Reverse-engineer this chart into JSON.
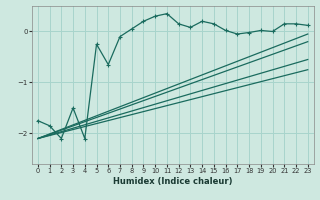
{
  "xlabel": "Humidex (Indice chaleur)",
  "ylabel": "",
  "xlim": [
    -0.5,
    23.5
  ],
  "ylim": [
    -2.6,
    0.5
  ],
  "yticks": [
    0,
    -1,
    -2
  ],
  "xticks": [
    0,
    1,
    2,
    3,
    4,
    5,
    6,
    7,
    8,
    9,
    10,
    11,
    12,
    13,
    14,
    15,
    16,
    17,
    18,
    19,
    20,
    21,
    22,
    23
  ],
  "bg_color": "#cee8e0",
  "grid_color": "#a8d4cc",
  "line_color": "#1a6b5e",
  "zigzag_x": [
    0,
    1,
    2,
    3,
    4,
    5,
    6,
    7,
    8,
    9,
    10,
    11,
    12,
    13,
    14,
    15,
    16,
    17,
    18,
    19,
    20,
    21,
    22,
    23
  ],
  "zigzag_y": [
    -1.75,
    -1.85,
    -2.1,
    -1.5,
    -2.1,
    -0.25,
    -0.65,
    -0.1,
    0.05,
    0.2,
    0.3,
    0.35,
    0.15,
    0.08,
    0.2,
    0.15,
    0.02,
    -0.05,
    -0.02,
    0.02,
    0.0,
    0.15,
    0.15,
    0.12
  ],
  "line1_x": [
    0,
    23
  ],
  "line1_y": [
    -2.1,
    -0.05
  ],
  "line2_x": [
    0,
    23
  ],
  "line2_y": [
    -2.1,
    -0.2
  ],
  "line3_x": [
    0,
    23
  ],
  "line3_y": [
    -2.1,
    -0.55
  ],
  "line4_x": [
    0,
    23
  ],
  "line4_y": [
    -2.1,
    -0.75
  ]
}
